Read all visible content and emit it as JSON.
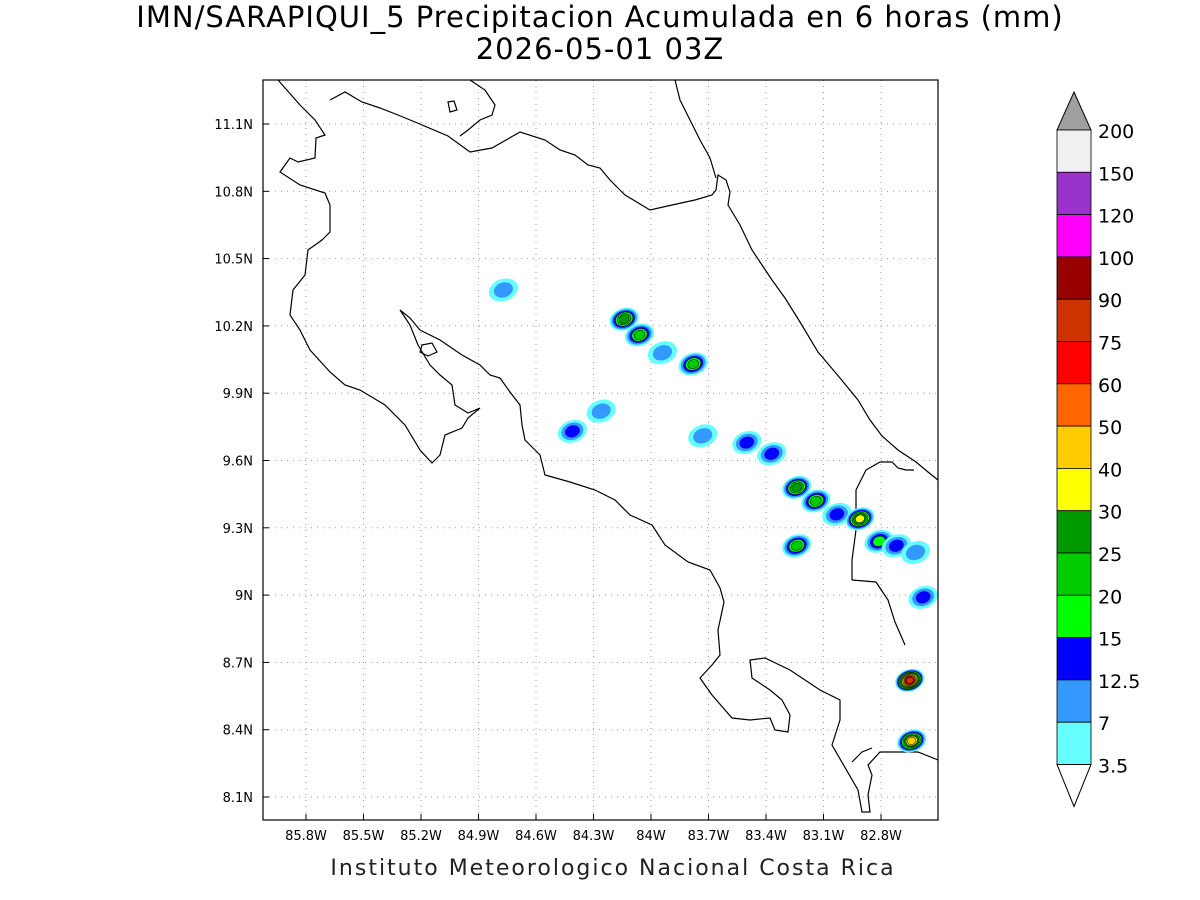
{
  "title": {
    "line1": "IMN/SARAPIQUI_5 Precipitacion Acumulada en 6 horas (mm)",
    "line2": "2026-05-01 03Z"
  },
  "credit": "Instituto Meteorologico Nacional Costa Rica",
  "axes": {
    "lon_labels": [
      "85.8W",
      "85.5W",
      "85.2W",
      "84.9W",
      "84.6W",
      "84.3W",
      "84W",
      "83.7W",
      "83.4W",
      "83.1W",
      "82.8W"
    ],
    "lat_labels": [
      "11.1N",
      "10.8N",
      "10.5N",
      "10.2N",
      "9.9N",
      "9.6N",
      "9.3N",
      "9N",
      "8.7N",
      "8.4N",
      "8.1N"
    ],
    "grid": "dotted"
  },
  "colorbar": {
    "labels": [
      "200",
      "150",
      "120",
      "100",
      "90",
      "75",
      "60",
      "50",
      "40",
      "30",
      "25",
      "20",
      "15",
      "12.5",
      "7",
      "3.5"
    ],
    "colors": [
      "#f0f0f0",
      "#9933cc",
      "#ff00ff",
      "#990000",
      "#cc3300",
      "#ff0000",
      "#ff6600",
      "#ffcc00",
      "#ffff00",
      "#009900",
      "#00cc00",
      "#00ff00",
      "#0000ff",
      "#3399ff",
      "#66ffff"
    ],
    "over_color": "#a0a0a0",
    "under_color": "#ffffff"
  },
  "precip_cells": [
    {
      "lon": -84.77,
      "lat": 10.36,
      "peak": "7"
    },
    {
      "lon": -84.14,
      "lat": 10.23,
      "peak": "25"
    },
    {
      "lon": -84.06,
      "lat": 10.16,
      "peak": "20"
    },
    {
      "lon": -83.94,
      "lat": 10.08,
      "peak": "7"
    },
    {
      "lon": -83.78,
      "lat": 10.03,
      "peak": "20"
    },
    {
      "lon": -84.41,
      "lat": 9.73,
      "peak": "12.5"
    },
    {
      "lon": -84.26,
      "lat": 9.82,
      "peak": "7"
    },
    {
      "lon": -83.73,
      "lat": 9.71,
      "peak": "7"
    },
    {
      "lon": -83.5,
      "lat": 9.68,
      "peak": "12.5"
    },
    {
      "lon": -83.37,
      "lat": 9.63,
      "peak": "12.5"
    },
    {
      "lon": -83.24,
      "lat": 9.48,
      "peak": "25"
    },
    {
      "lon": -83.14,
      "lat": 9.42,
      "peak": "20"
    },
    {
      "lon": -83.03,
      "lat": 9.36,
      "peak": "12.5"
    },
    {
      "lon": -82.91,
      "lat": 9.34,
      "peak": "30"
    },
    {
      "lon": -82.81,
      "lat": 9.24,
      "peak": "15"
    },
    {
      "lon": -82.72,
      "lat": 9.22,
      "peak": "12.5"
    },
    {
      "lon": -82.62,
      "lat": 9.19,
      "peak": "7"
    },
    {
      "lon": -83.24,
      "lat": 9.22,
      "peak": "20"
    },
    {
      "lon": -82.58,
      "lat": 8.99,
      "peak": "12.5"
    },
    {
      "lon": -82.65,
      "lat": 8.62,
      "peak": "75"
    },
    {
      "lon": -82.64,
      "lat": 8.35,
      "peak": "40"
    }
  ]
}
